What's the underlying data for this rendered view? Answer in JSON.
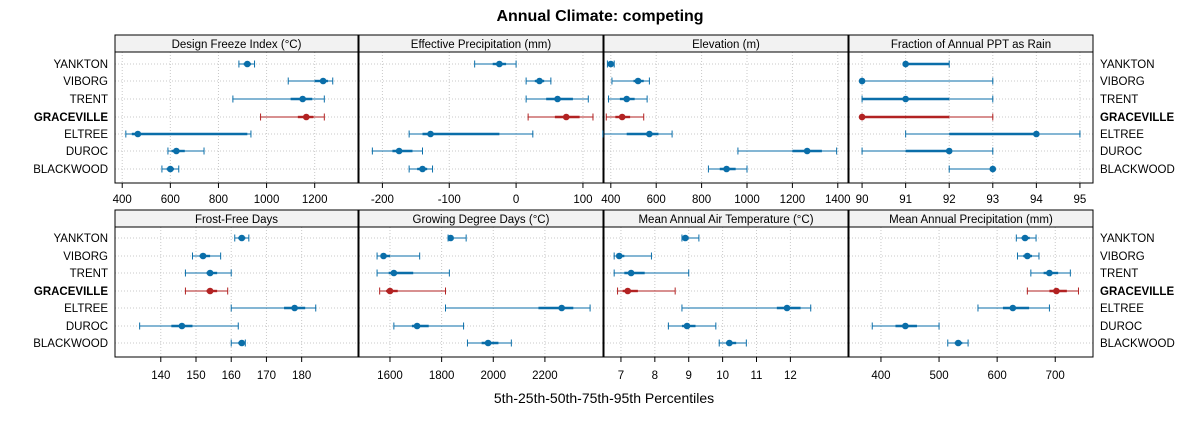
{
  "title": "Annual Climate: competing",
  "xlabel": "5th-25th-50th-75th-95th Percentiles",
  "colors": {
    "normal": "#0A6EA9",
    "highlight": "#B22222",
    "strip": "#F2F2F2",
    "grid": "#C8C8C8"
  },
  "sites": [
    "YANKTON",
    "VIBORG",
    "TRENT",
    "GRACEVILLE",
    "ELTREE",
    "DUROC",
    "BLACKWOOD"
  ],
  "highlight_site": "GRACEVILLE",
  "chart_data": [
    {
      "type": "percentile-interval",
      "title": "Design Freeze Index (°C)",
      "xlim": [
        370,
        1380
      ],
      "ticks": [
        400,
        600,
        800,
        1000,
        1200
      ],
      "tick_labels": [
        "400",
        "600",
        "800",
        "1000",
        "1200"
      ],
      "series": [
        {
          "site": "YANKTON",
          "p5": 885,
          "p25": 905,
          "p50": 920,
          "p75": 935,
          "p95": 950
        },
        {
          "site": "VIBORG",
          "p5": 1090,
          "p25": 1200,
          "p50": 1235,
          "p75": 1255,
          "p95": 1275
        },
        {
          "site": "TRENT",
          "p5": 860,
          "p25": 1100,
          "p50": 1150,
          "p75": 1190,
          "p95": 1240
        },
        {
          "site": "GRACEVILLE",
          "p5": 975,
          "p25": 1130,
          "p50": 1165,
          "p75": 1195,
          "p95": 1240
        },
        {
          "site": "ELTREE",
          "p5": 415,
          "p25": 440,
          "p50": 465,
          "p75": 920,
          "p95": 935
        },
        {
          "site": "DUROC",
          "p5": 590,
          "p25": 605,
          "p50": 625,
          "p75": 660,
          "p95": 740
        },
        {
          "site": "BLACKWOOD",
          "p5": 565,
          "p25": 585,
          "p50": 600,
          "p75": 615,
          "p95": 635
        }
      ]
    },
    {
      "type": "percentile-interval",
      "title": "Effective Precipitation (mm)",
      "xlim": [
        -235,
        130
      ],
      "ticks": [
        -200,
        -100,
        0,
        100
      ],
      "tick_labels": [
        "-200",
        "-100",
        "0",
        "100"
      ],
      "series": [
        {
          "site": "YANKTON",
          "p5": -62,
          "p25": -35,
          "p50": -25,
          "p75": -15,
          "p95": 0
        },
        {
          "site": "VIBORG",
          "p5": 15,
          "p25": 28,
          "p50": 35,
          "p75": 42,
          "p95": 52
        },
        {
          "site": "TRENT",
          "p5": 15,
          "p25": 45,
          "p50": 62,
          "p75": 85,
          "p95": 108
        },
        {
          "site": "GRACEVILLE",
          "p5": 18,
          "p25": 58,
          "p50": 75,
          "p75": 95,
          "p95": 115
        },
        {
          "site": "ELTREE",
          "p5": -160,
          "p25": -140,
          "p50": -128,
          "p75": -25,
          "p95": 25
        },
        {
          "site": "DUROC",
          "p5": -215,
          "p25": -185,
          "p50": -175,
          "p75": -155,
          "p95": -140
        },
        {
          "site": "BLACKWOOD",
          "p5": -160,
          "p25": -148,
          "p50": -140,
          "p75": -133,
          "p95": -125
        }
      ]
    },
    {
      "type": "percentile-interval",
      "title": "Elevation (m)",
      "xlim": [
        370,
        1445
      ],
      "ticks": [
        400,
        600,
        800,
        1000,
        1200,
        1400
      ],
      "tick_labels": [
        "400",
        "600",
        "800",
        "1000",
        "1200",
        "1400"
      ],
      "series": [
        {
          "site": "YANKTON",
          "p5": 385,
          "p25": 392,
          "p50": 400,
          "p75": 408,
          "p95": 415
        },
        {
          "site": "VIBORG",
          "p5": 405,
          "p25": 500,
          "p50": 520,
          "p75": 545,
          "p95": 570
        },
        {
          "site": "TRENT",
          "p5": 390,
          "p25": 440,
          "p50": 470,
          "p75": 505,
          "p95": 560
        },
        {
          "site": "GRACEVILLE",
          "p5": 380,
          "p25": 420,
          "p50": 450,
          "p75": 485,
          "p95": 545
        },
        {
          "site": "ELTREE",
          "p5": 365,
          "p25": 470,
          "p50": 570,
          "p75": 610,
          "p95": 670
        },
        {
          "site": "DUROC",
          "p5": 960,
          "p25": 1200,
          "p50": 1265,
          "p75": 1330,
          "p95": 1395
        },
        {
          "site": "BLACKWOOD",
          "p5": 830,
          "p25": 880,
          "p50": 910,
          "p75": 950,
          "p95": 1000
        }
      ]
    },
    {
      "type": "percentile-interval",
      "title": "Fraction of Annual PPT as Rain",
      "xlim": [
        89.7,
        95.3
      ],
      "ticks": [
        90,
        91,
        92,
        93,
        94,
        95
      ],
      "tick_labels": [
        "90",
        "91",
        "92",
        "93",
        "94",
        "95"
      ],
      "series": [
        {
          "site": "YANKTON",
          "p5": 91,
          "p25": 91,
          "p50": 91,
          "p75": 92,
          "p95": 92
        },
        {
          "site": "VIBORG",
          "p5": 90,
          "p25": 90,
          "p50": 90,
          "p75": 90,
          "p95": 93
        },
        {
          "site": "TRENT",
          "p5": 90,
          "p25": 90,
          "p50": 91,
          "p75": 92,
          "p95": 93
        },
        {
          "site": "GRACEVILLE",
          "p5": 90,
          "p25": 90,
          "p50": 90,
          "p75": 92,
          "p95": 93
        },
        {
          "site": "ELTREE",
          "p5": 91,
          "p25": 92,
          "p50": 94,
          "p75": 94,
          "p95": 95
        },
        {
          "site": "DUROC",
          "p5": 90,
          "p25": 91,
          "p50": 92,
          "p75": 92,
          "p95": 93
        },
        {
          "site": "BLACKWOOD",
          "p5": 92,
          "p25": 93,
          "p50": 93,
          "p75": 93,
          "p95": 93
        }
      ]
    },
    {
      "type": "percentile-interval",
      "title": "Frost-Free Days",
      "xlim": [
        127,
        196
      ],
      "ticks": [
        140,
        150,
        160,
        170,
        180
      ],
      "tick_labels": [
        "140",
        "150",
        "160",
        "170",
        "180"
      ],
      "series": [
        {
          "site": "YANKTON",
          "p5": 161,
          "p25": 162,
          "p50": 163,
          "p75": 164,
          "p95": 165
        },
        {
          "site": "VIBORG",
          "p5": 149,
          "p25": 151,
          "p50": 152,
          "p75": 154,
          "p95": 157
        },
        {
          "site": "TRENT",
          "p5": 147,
          "p25": 153,
          "p50": 154,
          "p75": 156,
          "p95": 160
        },
        {
          "site": "GRACEVILLE",
          "p5": 147,
          "p25": 153,
          "p50": 154,
          "p75": 156,
          "p95": 159
        },
        {
          "site": "ELTREE",
          "p5": 160,
          "p25": 175,
          "p50": 178,
          "p75": 181,
          "p95": 184
        },
        {
          "site": "DUROC",
          "p5": 134,
          "p25": 143,
          "p50": 146,
          "p75": 149,
          "p95": 162
        },
        {
          "site": "BLACKWOOD",
          "p5": 160,
          "p25": 162,
          "p50": 163,
          "p75": 163,
          "p95": 164
        }
      ]
    },
    {
      "type": "percentile-interval",
      "title": "Growing Degree Days (°C)",
      "xlim": [
        1480,
        2425
      ],
      "ticks": [
        1600,
        1800,
        2000,
        2200
      ],
      "tick_labels": [
        "1600",
        "1800",
        "2000",
        "2200"
      ],
      "series": [
        {
          "site": "YANKTON",
          "p5": 1825,
          "p25": 1830,
          "p50": 1835,
          "p75": 1845,
          "p95": 1895
        },
        {
          "site": "VIBORG",
          "p5": 1550,
          "p25": 1565,
          "p50": 1575,
          "p75": 1600,
          "p95": 1715
        },
        {
          "site": "TRENT",
          "p5": 1550,
          "p25": 1595,
          "p50": 1615,
          "p75": 1690,
          "p95": 1830
        },
        {
          "site": "GRACEVILLE",
          "p5": 1560,
          "p25": 1585,
          "p50": 1600,
          "p75": 1630,
          "p95": 1815
        },
        {
          "site": "ELTREE",
          "p5": 1815,
          "p25": 2175,
          "p50": 2265,
          "p75": 2310,
          "p95": 2375
        },
        {
          "site": "DUROC",
          "p5": 1615,
          "p25": 1685,
          "p50": 1705,
          "p75": 1750,
          "p95": 1885
        },
        {
          "site": "BLACKWOOD",
          "p5": 1900,
          "p25": 1955,
          "p50": 1980,
          "p75": 2020,
          "p95": 2070
        }
      ]
    },
    {
      "type": "percentile-interval",
      "title": "Mean Annual Air Temperature (°C)",
      "xlim": [
        6.5,
        13.7
      ],
      "ticks": [
        7,
        8,
        9,
        10,
        11,
        12
      ],
      "tick_labels": [
        "7",
        "8",
        "9",
        "10",
        "11",
        "12"
      ],
      "series": [
        {
          "site": "YANKTON",
          "p5": 8.8,
          "p25": 8.85,
          "p50": 8.9,
          "p75": 9.0,
          "p95": 9.3
        },
        {
          "site": "VIBORG",
          "p5": 6.8,
          "p25": 6.9,
          "p50": 6.95,
          "p75": 7.1,
          "p95": 7.9
        },
        {
          "site": "TRENT",
          "p5": 6.8,
          "p25": 7.1,
          "p50": 7.3,
          "p75": 7.7,
          "p95": 9.0
        },
        {
          "site": "GRACEVILLE",
          "p5": 6.9,
          "p25": 7.05,
          "p50": 7.2,
          "p75": 7.5,
          "p95": 8.6
        },
        {
          "site": "ELTREE",
          "p5": 8.8,
          "p25": 11.6,
          "p50": 11.9,
          "p75": 12.3,
          "p95": 12.6
        },
        {
          "site": "DUROC",
          "p5": 8.4,
          "p25": 8.8,
          "p50": 8.95,
          "p75": 9.2,
          "p95": 9.8
        },
        {
          "site": "BLACKWOOD",
          "p5": 9.9,
          "p25": 10.1,
          "p50": 10.2,
          "p75": 10.4,
          "p95": 10.7
        }
      ]
    },
    {
      "type": "percentile-interval",
      "title": "Mean Annual Precipitation (mm)",
      "xlim": [
        345,
        765
      ],
      "ticks": [
        400,
        500,
        600,
        700
      ],
      "tick_labels": [
        "400",
        "500",
        "600",
        "700"
      ],
      "series": [
        {
          "site": "YANKTON",
          "p5": 633,
          "p25": 642,
          "p50": 648,
          "p75": 656,
          "p95": 667
        },
        {
          "site": "VIBORG",
          "p5": 635,
          "p25": 645,
          "p50": 652,
          "p75": 660,
          "p95": 672
        },
        {
          "site": "TRENT",
          "p5": 658,
          "p25": 680,
          "p50": 690,
          "p75": 705,
          "p95": 726
        },
        {
          "site": "GRACEVILLE",
          "p5": 652,
          "p25": 690,
          "p50": 702,
          "p75": 720,
          "p95": 740
        },
        {
          "site": "ELTREE",
          "p5": 567,
          "p25": 610,
          "p50": 627,
          "p75": 655,
          "p95": 690
        },
        {
          "site": "DUROC",
          "p5": 385,
          "p25": 425,
          "p50": 442,
          "p75": 462,
          "p95": 500
        },
        {
          "site": "BLACKWOOD",
          "p5": 515,
          "p25": 527,
          "p50": 533,
          "p75": 540,
          "p95": 550
        }
      ]
    }
  ]
}
